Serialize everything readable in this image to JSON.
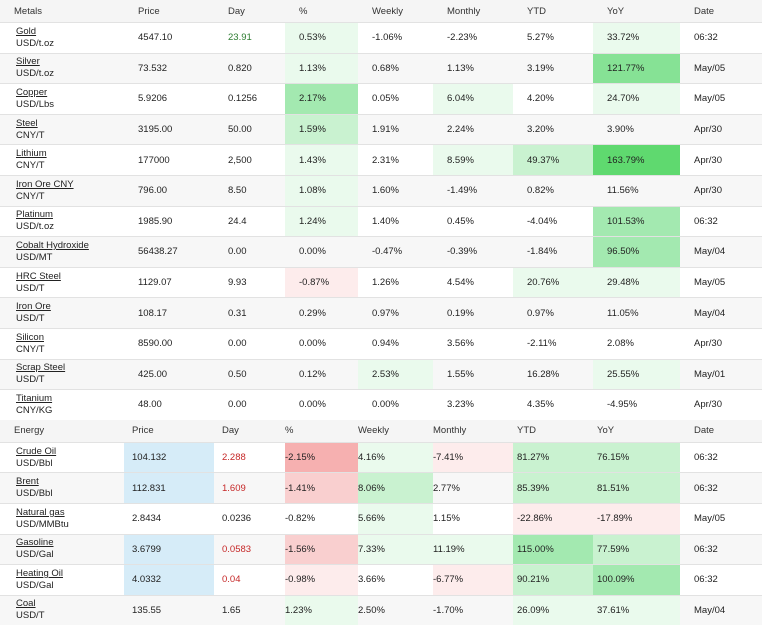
{
  "metals": {
    "header": [
      "Metals",
      "Price",
      "Day",
      "%",
      "Weekly",
      "Monthly",
      "YTD",
      "YoY",
      "Date"
    ],
    "rows": [
      {
        "name": "Gold",
        "unit": "USD/t.oz",
        "price": "4547.10",
        "day": "23.91",
        "pct": "0.53%",
        "weekly": "-1.06%",
        "monthly": "-2.23%",
        "ytd": "5.27%",
        "yoy": "33.72%",
        "date": "06:32"
      },
      {
        "name": "Silver",
        "unit": "USD/t.oz",
        "price": "73.532",
        "day": "0.820",
        "pct": "1.13%",
        "weekly": "0.68%",
        "monthly": "1.13%",
        "ytd": "3.19%",
        "yoy": "121.77%",
        "date": "May/05"
      },
      {
        "name": "Copper",
        "unit": "USD/Lbs",
        "price": "5.9206",
        "day": "0.1256",
        "pct": "2.17%",
        "weekly": "0.05%",
        "monthly": "6.04%",
        "ytd": "4.20%",
        "yoy": "24.70%",
        "date": "May/05"
      },
      {
        "name": "Steel",
        "unit": "CNY/T",
        "price": "3195.00",
        "day": "50.00",
        "pct": "1.59%",
        "weekly": "1.91%",
        "monthly": "2.24%",
        "ytd": "3.20%",
        "yoy": "3.90%",
        "date": "Apr/30"
      },
      {
        "name": "Lithium",
        "unit": "CNY/T",
        "price": "177000",
        "day": "2,500",
        "pct": "1.43%",
        "weekly": "2.31%",
        "monthly": "8.59%",
        "ytd": "49.37%",
        "yoy": "163.79%",
        "date": "Apr/30"
      },
      {
        "name": "Iron Ore CNY",
        "unit": "CNY/T",
        "price": "796.00",
        "day": "8.50",
        "pct": "1.08%",
        "weekly": "1.60%",
        "monthly": "-1.49%",
        "ytd": "0.82%",
        "yoy": "11.56%",
        "date": "Apr/30"
      },
      {
        "name": "Platinum",
        "unit": "USD/t.oz",
        "price": "1985.90",
        "day": "24.4",
        "pct": "1.24%",
        "weekly": "1.40%",
        "monthly": "0.45%",
        "ytd": "-4.04%",
        "yoy": "101.53%",
        "date": "06:32"
      },
      {
        "name": "Cobalt Hydroxide",
        "unit": "USD/MT",
        "price": "56438.27",
        "day": "0.00",
        "pct": "0.00%",
        "weekly": "-0.47%",
        "monthly": "-0.39%",
        "ytd": "-1.84%",
        "yoy": "96.50%",
        "date": "May/04"
      },
      {
        "name": "HRC Steel",
        "unit": "USD/T",
        "price": "1129.07",
        "day": "9.93",
        "pct": "-0.87%",
        "weekly": "1.26%",
        "monthly": "4.54%",
        "ytd": "20.76%",
        "yoy": "29.48%",
        "date": "May/05"
      },
      {
        "name": "Iron Ore",
        "unit": "USD/T",
        "price": "108.17",
        "day": "0.31",
        "pct": "0.29%",
        "weekly": "0.97%",
        "monthly": "0.19%",
        "ytd": "0.97%",
        "yoy": "11.05%",
        "date": "May/04"
      },
      {
        "name": "Silicon",
        "unit": "CNY/T",
        "price": "8590.00",
        "day": "0.00",
        "pct": "0.00%",
        "weekly": "0.94%",
        "monthly": "3.56%",
        "ytd": "-2.11%",
        "yoy": "2.08%",
        "date": "Apr/30"
      },
      {
        "name": "Scrap Steel",
        "unit": "USD/T",
        "price": "425.00",
        "day": "0.50",
        "pct": "0.12%",
        "weekly": "2.53%",
        "monthly": "1.55%",
        "ytd": "16.28%",
        "yoy": "25.55%",
        "date": "May/01"
      },
      {
        "name": "Titanium",
        "unit": "CNY/KG",
        "price": "48.00",
        "day": "0.00",
        "pct": "0.00%",
        "weekly": "0.00%",
        "monthly": "3.23%",
        "ytd": "4.35%",
        "yoy": "-4.95%",
        "date": "Apr/30"
      }
    ]
  },
  "energy": {
    "header": [
      "Energy",
      "Price",
      "Day",
      "%",
      "Weekly",
      "Monthly",
      "YTD",
      "YoY",
      "Date"
    ],
    "rows": [
      {
        "name": "Crude Oil",
        "unit": "USD/Bbl",
        "price": "104.132",
        "day": "2.288",
        "pct": "-2.15%",
        "weekly": "4.16%",
        "monthly": "-7.41%",
        "ytd": "81.27%",
        "yoy": "76.15%",
        "date": "06:32"
      },
      {
        "name": "Brent",
        "unit": "USD/Bbl",
        "price": "112.831",
        "day": "1.609",
        "pct": "-1.41%",
        "weekly": "8.06%",
        "monthly": "2.77%",
        "ytd": "85.39%",
        "yoy": "81.51%",
        "date": "06:32"
      },
      {
        "name": "Natural gas",
        "unit": "USD/MMBtu",
        "price": "2.8434",
        "day": "0.0236",
        "pct": "-0.82%",
        "weekly": "5.66%",
        "monthly": "1.15%",
        "ytd": "-22.86%",
        "yoy": "-17.89%",
        "date": "May/05"
      },
      {
        "name": "Gasoline",
        "unit": "USD/Gal",
        "price": "3.6799",
        "day": "0.0583",
        "pct": "-1.56%",
        "weekly": "7.33%",
        "monthly": "11.19%",
        "ytd": "115.00%",
        "yoy": "77.59%",
        "date": "06:32"
      },
      {
        "name": "Heating Oil",
        "unit": "USD/Gal",
        "price": "4.0332",
        "day": "0.04",
        "pct": "-0.98%",
        "weekly": "3.66%",
        "monthly": "-6.77%",
        "ytd": "90.21%",
        "yoy": "100.09%",
        "date": "06:32"
      },
      {
        "name": "Coal",
        "unit": "USD/T",
        "price": "135.55",
        "day": "1.65",
        "pct": "1.23%",
        "weekly": "2.50%",
        "monthly": "-1.70%",
        "ytd": "26.09%",
        "yoy": "37.61%",
        "date": "May/04"
      }
    ]
  },
  "colors": {
    "positive_text": "#2e7d32",
    "negative_text": "#c62828",
    "price_highlight": "#d6ecf8",
    "green_scale": [
      "#eafaed",
      "#c9f2d0",
      "#a3e9b0",
      "#86e295",
      "#5fd96f"
    ],
    "red_scale": [
      "#fdecec",
      "#f9cfcf",
      "#f6b0b0"
    ]
  }
}
